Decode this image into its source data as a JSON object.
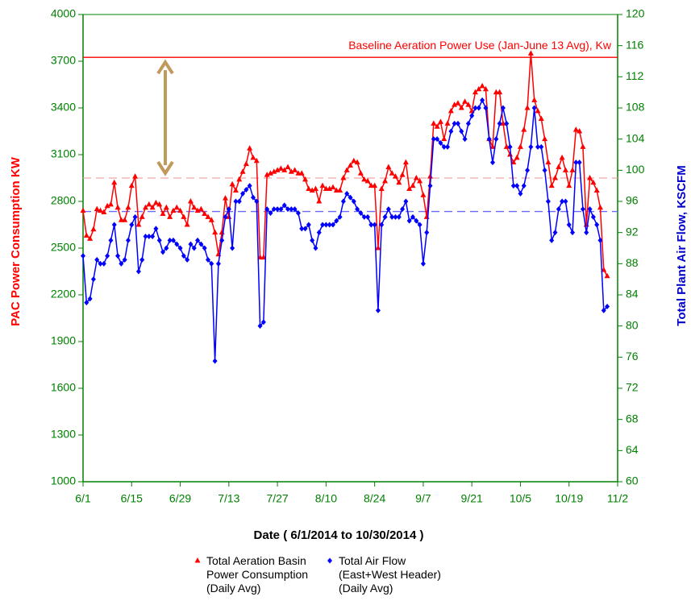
{
  "chart_data": {
    "type": "line",
    "xlabel": "Date ( 6/1/2014 to 10/30/2014 )",
    "ylabel": "PAC Power Consumption KW",
    "y2label": "Total Plant Air Flow, KSCFM",
    "x": [
      0,
      1,
      2,
      3,
      4,
      5,
      6,
      7,
      8,
      9,
      10,
      11,
      12,
      13,
      14,
      15,
      16,
      17,
      18,
      19,
      20,
      21,
      22,
      23,
      24,
      25,
      26,
      27,
      28,
      29,
      30,
      31,
      32,
      33,
      34,
      35,
      36,
      37,
      38,
      39,
      40,
      41,
      42,
      43,
      44,
      45,
      46,
      47,
      48,
      49,
      50,
      51,
      52,
      53,
      54,
      55,
      56,
      57,
      58,
      59,
      60,
      61,
      62,
      63,
      64,
      65,
      66,
      67,
      68,
      69,
      70,
      71,
      72,
      73,
      74,
      75,
      76,
      77,
      78,
      79,
      80,
      81,
      82,
      83,
      84,
      85,
      86,
      87,
      88,
      89,
      90,
      91,
      92,
      93,
      94,
      95,
      96,
      97,
      98,
      99,
      100,
      101,
      102,
      103,
      104,
      105,
      106,
      107,
      108,
      109,
      110,
      111,
      112,
      113,
      114,
      115,
      116,
      117,
      118,
      119,
      120,
      121,
      122,
      123,
      124,
      125,
      126,
      127,
      128,
      129,
      130,
      131,
      132,
      133,
      134,
      135,
      136,
      137,
      138,
      139,
      140,
      141,
      142,
      143,
      144,
      145,
      146,
      147,
      148,
      149,
      150,
      151
    ],
    "xlim": [
      0,
      154
    ],
    "xticks": [
      {
        "value": 0,
        "label": "6/1"
      },
      {
        "value": 14,
        "label": "6/15"
      },
      {
        "value": 28,
        "label": "6/29"
      },
      {
        "value": 42,
        "label": "7/13"
      },
      {
        "value": 56,
        "label": "7/27"
      },
      {
        "value": 70,
        "label": "8/10"
      },
      {
        "value": 84,
        "label": "8/24"
      },
      {
        "value": 98,
        "label": "9/7"
      },
      {
        "value": 112,
        "label": "9/21"
      },
      {
        "value": 126,
        "label": "10/5"
      },
      {
        "value": 140,
        "label": "10/19"
      },
      {
        "value": 154,
        "label": "11/2"
      }
    ],
    "ylim": [
      1000,
      4000
    ],
    "yticks": [
      1000,
      1300,
      1600,
      1900,
      2200,
      2500,
      2800,
      3100,
      3400,
      3700,
      4000
    ],
    "y2lim": [
      60,
      120
    ],
    "y2ticks": [
      60,
      64,
      68,
      72,
      76,
      80,
      84,
      88,
      92,
      96,
      100,
      104,
      108,
      112,
      116,
      120
    ],
    "axis_color": "#008000",
    "legend": "bottom",
    "series": [
      {
        "name": "Total Aeration Basin Power Consumption (Daily Avg)",
        "color": "#ff0000",
        "marker": "triangle",
        "values": [
          2740,
          2580,
          2560,
          2620,
          2750,
          2740,
          2730,
          2770,
          2780,
          2920,
          2760,
          2680,
          2680,
          2760,
          2900,
          2960,
          2650,
          2700,
          2760,
          2780,
          2760,
          2790,
          2780,
          2720,
          2760,
          2700,
          2740,
          2760,
          2740,
          2700,
          2650,
          2800,
          2760,
          2740,
          2750,
          2720,
          2700,
          2680,
          2600,
          2460,
          2600,
          2820,
          2700,
          2910,
          2870,
          2940,
          2990,
          3040,
          3140,
          3080,
          3060,
          2440,
          2440,
          2970,
          2980,
          2990,
          3000,
          3010,
          3000,
          3020,
          2990,
          3000,
          2980,
          2980,
          2940,
          2880,
          2870,
          2880,
          2800,
          2900,
          2880,
          2880,
          2890,
          2870,
          2870,
          2950,
          3000,
          3030,
          3060,
          3050,
          2980,
          2940,
          2930,
          2900,
          2900,
          2500,
          2880,
          2930,
          3020,
          2980,
          2960,
          2920,
          2970,
          3050,
          2880,
          2900,
          2950,
          2930,
          2840,
          2700,
          2960,
          3300,
          3280,
          3310,
          3200,
          3300,
          3380,
          3420,
          3430,
          3400,
          3440,
          3420,
          3380,
          3500,
          3520,
          3540,
          3520,
          3200,
          3150,
          3500,
          3500,
          3300,
          3150,
          3100,
          3050,
          3080,
          3150,
          3260,
          3400,
          3750,
          3450,
          3380,
          3330,
          3200,
          3050,
          2900,
          2950,
          3020,
          3080,
          3000,
          2900,
          3000,
          3260,
          3250,
          3150,
          2650,
          2950,
          2920,
          2870,
          2760,
          2360,
          2320
        ]
      },
      {
        "name": "Total Air Flow (East+West Header) (Daily Avg)",
        "color": "#0000ff",
        "marker": "diamond",
        "axis": "y2",
        "values": [
          89,
          83,
          83.5,
          86,
          88.5,
          88,
          88,
          89,
          91,
          93,
          89,
          88,
          88.5,
          91,
          93,
          94,
          87,
          88.5,
          91.5,
          91.5,
          91.5,
          92.5,
          91,
          89.5,
          90,
          91,
          91,
          90.5,
          90,
          89,
          88.5,
          90.5,
          90,
          91,
          90.5,
          90,
          88.5,
          88,
          75.5,
          88,
          91,
          94,
          95,
          90,
          96,
          96,
          97,
          97.5,
          98,
          96.5,
          96,
          80,
          80.5,
          95,
          94.5,
          95,
          95,
          95,
          95.5,
          95,
          95,
          95,
          94.5,
          92.5,
          92.5,
          93,
          91,
          90,
          92,
          93,
          93,
          93,
          93,
          93.5,
          94,
          96,
          97,
          96.5,
          96,
          95,
          94.5,
          94,
          94,
          93,
          93,
          82,
          93,
          94,
          95,
          94,
          94,
          94,
          95,
          96,
          93.5,
          94,
          93.5,
          93,
          88,
          92,
          98,
          104,
          104,
          103.5,
          103,
          103,
          105,
          106,
          106,
          105,
          104,
          106,
          107,
          108,
          108,
          109,
          108,
          104,
          101,
          104,
          106,
          108,
          106,
          103,
          98,
          98,
          97,
          98,
          100,
          103,
          108,
          103,
          103,
          100,
          96,
          91,
          92,
          95,
          96,
          96,
          93,
          92,
          101,
          101,
          95,
          92,
          95,
          94,
          93,
          91,
          82,
          82.5
        ]
      }
    ],
    "reference_lines": [
      {
        "value": 3725,
        "color": "#ff0000",
        "style": "solid",
        "label": "Baseline Aeration Power Use (Jan-June 13 Avg), Kw"
      },
      {
        "value": 2950,
        "color": "#f4a3a3",
        "style": "dashed"
      },
      {
        "value": 94.7,
        "axis": "y2",
        "color": "#6a6aff",
        "style": "dashed"
      }
    ]
  }
}
